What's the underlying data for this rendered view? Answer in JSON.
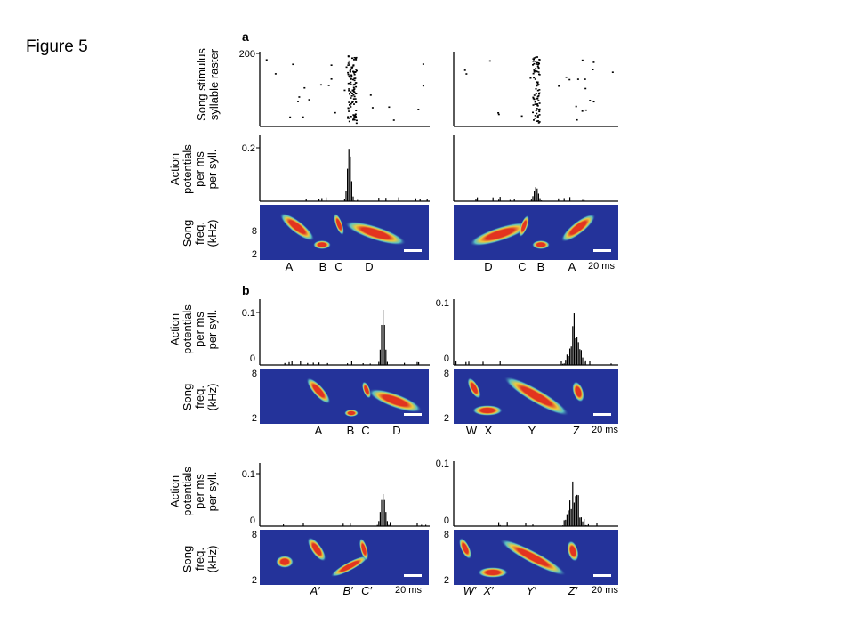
{
  "slide": {
    "title": "Figure 5"
  },
  "panel_a": {
    "label": "a",
    "raster": {
      "ylabel_lines": [
        "Song stimulus",
        "syllable raster"
      ],
      "ytick": "200"
    },
    "psth": {
      "ylabel_lines": [
        "Action",
        "potentials",
        "per ms",
        "per syll."
      ],
      "ytick": "0.2"
    },
    "spectrogram": {
      "ylabel_lines": [
        "Song",
        "freq.",
        "(kHz)"
      ],
      "yticks": [
        "8",
        "2"
      ]
    },
    "left_syllables": [
      "A",
      "B",
      "C",
      "D"
    ],
    "right_syllables": [
      "D",
      "C",
      "B",
      "A"
    ],
    "scale_label": "20 ms"
  },
  "panel_b": {
    "label": "b",
    "psth": {
      "ylabel_lines": [
        "Action",
        "potentials",
        "per ms",
        "per syll."
      ],
      "yticks": [
        "0.1",
        "0"
      ]
    },
    "spectrogram": {
      "ylabel_lines": [
        "Song",
        "freq.",
        "(kHz)"
      ],
      "yticks": [
        "8",
        "2"
      ]
    },
    "row1_left_syllables": [
      "A",
      "B",
      "C",
      "D"
    ],
    "row1_right_syllables": [
      "W",
      "X",
      "Y",
      "Z"
    ],
    "row2_left_syllables": [
      "A′",
      "B′",
      "C′"
    ],
    "row2_right_syllables": [
      "W′",
      "X′",
      "Y′",
      "Z′"
    ],
    "scale_label": "20 ms"
  },
  "colors": {
    "spectrogram_background": "#24339a",
    "spectrogram_hot": "#e8341c",
    "spectrogram_warm": "#f6d33a",
    "spectrogram_edge": "#5fd0c8",
    "ink": "#000000"
  }
}
